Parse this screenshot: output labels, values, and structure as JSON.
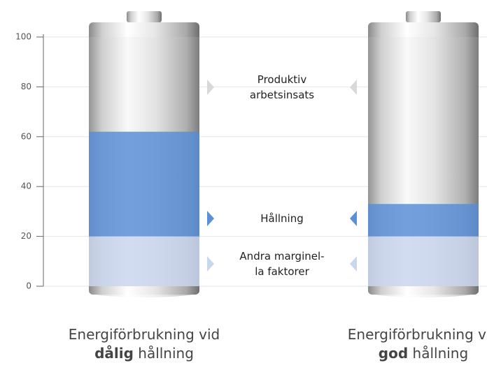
{
  "chart_data": {
    "type": "stacked-battery",
    "categories": [
      [
        "Energiförbrukning vid",
        "dålig",
        "hållning"
      ],
      [
        "Energiförbrukning vid",
        "god",
        "hållning"
      ]
    ],
    "series": [
      {
        "name": "Andra marginel-\nla faktorer",
        "color": "#c9d6ee",
        "values": [
          20,
          20
        ]
      },
      {
        "name": "Hållning",
        "color": "#5b8fd6",
        "values": [
          42,
          13
        ]
      },
      {
        "name": "Produktiv\narbetsinsats",
        "color": "#d9d9d9",
        "values": [
          38,
          67
        ]
      }
    ],
    "ylim": [
      0,
      100
    ],
    "yticks": [
      0,
      20,
      40,
      60,
      80,
      100
    ],
    "grid": true
  }
}
